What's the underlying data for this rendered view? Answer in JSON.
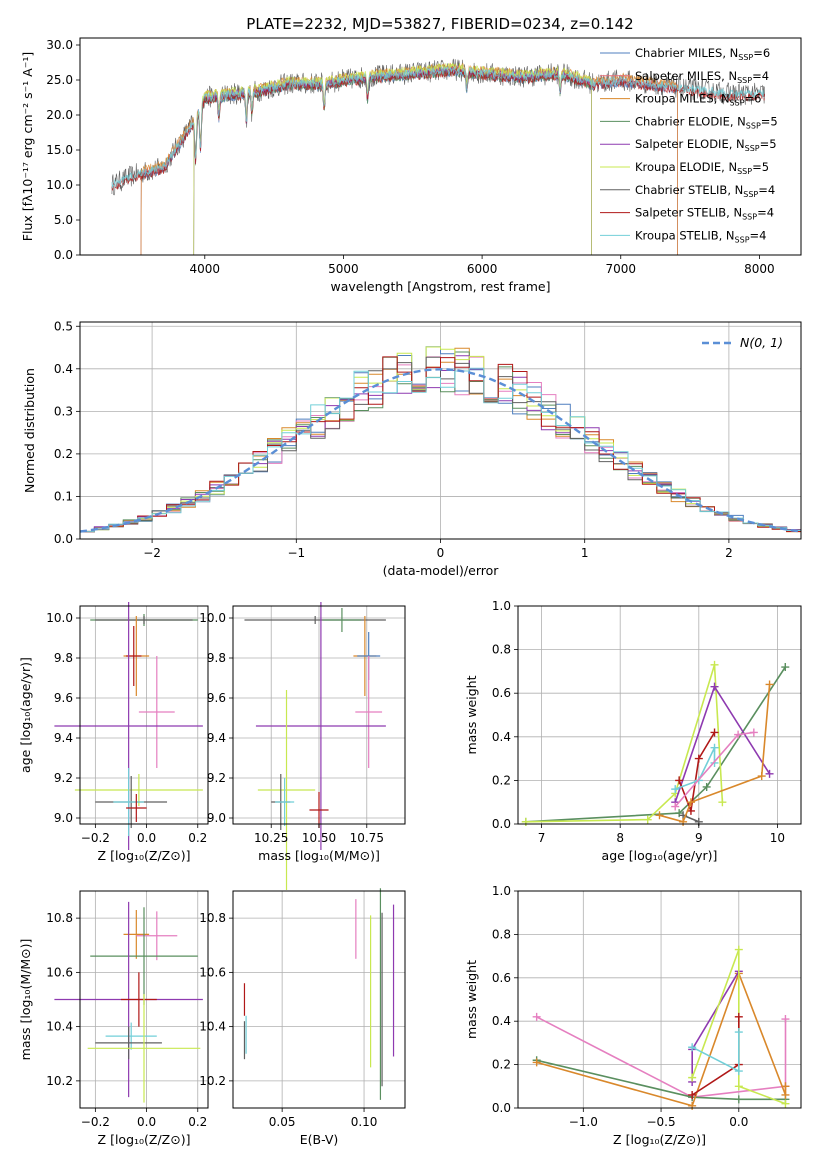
{
  "figure_title": "PLATE=2232, MJD=53827, FIBERID=0234, z=0.142",
  "colors": {
    "chabrier_miles": "#4f7fbf",
    "salpeter_miles": "#e8707a",
    "kroupa_miles": "#d9882b",
    "chabrier_elodie": "#5a8f5f",
    "salpeter_elodie": "#8e3ab0",
    "kroupa_elodie": "#c8e850",
    "chabrier_stelib": "#606060",
    "salpeter_stelib": "#b01818",
    "kroupa_stelib": "#72cfd8",
    "pink": "#e57fc0",
    "normal_curve": "#5b8fd6",
    "grid": "#b0b0b0"
  },
  "chart_data": [
    {
      "type": "line",
      "xlabel": "wavelength [Angstrom, rest frame]",
      "ylabel": "Flux [fλ10⁻¹⁷ erg cm⁻² s⁻¹ A⁻¹]",
      "xlim": [
        3100,
        8300
      ],
      "ylim": [
        0,
        31
      ],
      "xticks": [
        4000,
        5000,
        6000,
        7000,
        8000
      ],
      "yticks": [
        0,
        5,
        10,
        15,
        20,
        25,
        30
      ],
      "grid": false,
      "legend_position": "top-right",
      "legend": [
        {
          "label": "Chabrier MILES, N",
          "sub": "SSP",
          "tail": "=6",
          "color_key": "chabrier_miles"
        },
        {
          "label": "Salpeter MILES, N",
          "sub": "SSP",
          "tail": "=4",
          "color_key": "salpeter_miles"
        },
        {
          "label": "Kroupa MILES, N",
          "sub": "SSP",
          "tail": "=6",
          "color_key": "kroupa_miles"
        },
        {
          "label": "Chabrier ELODIE, N",
          "sub": "SSP",
          "tail": "=5",
          "color_key": "chabrier_elodie"
        },
        {
          "label": "Salpeter ELODIE, N",
          "sub": "SSP",
          "tail": "=5",
          "color_key": "salpeter_elodie"
        },
        {
          "label": "Kroupa ELODIE, N",
          "sub": "SSP",
          "tail": "=5",
          "color_key": "kroupa_elodie"
        },
        {
          "label": "Chabrier STELIB, N",
          "sub": "SSP",
          "tail": "=4",
          "color_key": "chabrier_stelib"
        },
        {
          "label": "Salpeter STELIB, N",
          "sub": "SSP",
          "tail": "=4",
          "color_key": "salpeter_stelib"
        },
        {
          "label": "Kroupa STELIB, N",
          "sub": "SSP",
          "tail": "=4",
          "color_key": "kroupa_stelib"
        }
      ],
      "spectrum": {
        "x_range": [
          3330,
          8040
        ],
        "continuum": [
          [
            3330,
            10
          ],
          [
            3500,
            11.5
          ],
          [
            3700,
            12.5
          ],
          [
            3850,
            17
          ],
          [
            3920,
            19
          ],
          [
            4000,
            22.5
          ],
          [
            4200,
            23
          ],
          [
            4400,
            23.5
          ],
          [
            4600,
            24.5
          ],
          [
            4860,
            24.5
          ],
          [
            5000,
            25
          ],
          [
            5200,
            25.5
          ],
          [
            5500,
            26
          ],
          [
            5800,
            26.5
          ],
          [
            6000,
            26
          ],
          [
            6300,
            25.5
          ],
          [
            6560,
            26
          ],
          [
            6800,
            24.5
          ],
          [
            7000,
            25
          ],
          [
            7400,
            24
          ],
          [
            7800,
            23
          ],
          [
            8040,
            23
          ]
        ],
        "absorption_lines": [
          [
            3934,
            6
          ],
          [
            3969,
            6
          ],
          [
            4102,
            3
          ],
          [
            4300,
            4
          ],
          [
            4340,
            3
          ],
          [
            4861,
            3.5
          ],
          [
            5175,
            3
          ],
          [
            5890,
            2.5
          ],
          [
            6563,
            2.5
          ]
        ],
        "model_ranges": [
          {
            "key": "chabrier_miles",
            "from": 3540,
            "to": 7410
          },
          {
            "key": "salpeter_miles",
            "from": 3540,
            "to": 7410
          },
          {
            "key": "kroupa_miles",
            "from": 3540,
            "to": 7410
          },
          {
            "key": "chabrier_elodie",
            "from": 3920,
            "to": 6790
          },
          {
            "key": "salpeter_elodie",
            "from": 3920,
            "to": 6790
          },
          {
            "key": "kroupa_elodie",
            "from": 3920,
            "to": 6790
          },
          {
            "key": "salpeter_stelib",
            "from": 3330,
            "to": 8040
          },
          {
            "key": "kroupa_stelib",
            "from": 3330,
            "to": 8040
          }
        ]
      }
    },
    {
      "type": "histogram",
      "xlabel": "(data-model)/error",
      "ylabel": "Normed distribution",
      "xlim": [
        -2.5,
        2.5
      ],
      "ylim": [
        0,
        0.51
      ],
      "xticks": [
        -2,
        -1,
        0,
        1,
        2
      ],
      "xtick_labels": [
        "−2",
        "−1",
        "0",
        "1",
        "2"
      ],
      "yticks": [
        0.0,
        0.1,
        0.2,
        0.3,
        0.4,
        0.5
      ],
      "grid": true,
      "legend_position": "top-right",
      "normal_label": "N(0, 1)",
      "bin_width": 0.1,
      "series_keys": [
        "chabrier_miles",
        "pink",
        "kroupa_miles",
        "chabrier_elodie",
        "salpeter_elodie",
        "kroupa_elodie",
        "chabrier_stelib",
        "salpeter_stelib",
        "kroupa_stelib"
      ]
    },
    {
      "type": "scatter-errorbar",
      "xlabel": "Z [log₁₀(Z/Z⊙)]",
      "ylabel": "age  [log₁₀(age/yr)]",
      "xlim": [
        -0.26,
        0.24
      ],
      "ylim": [
        8.97,
        10.06
      ],
      "xticks": [
        -0.2,
        0.0,
        0.2
      ],
      "xtick_labels": [
        "−0.2",
        "0.0",
        "0.2"
      ],
      "yticks": [
        9.0,
        9.2,
        9.4,
        9.6,
        9.8,
        10.0
      ],
      "grid": true,
      "points": [
        {
          "x": -0.01,
          "y": 9.99,
          "xe": 0.21,
          "ye": 0.03,
          "key": "chabrier_elodie"
        },
        {
          "x": -0.01,
          "y": 9.99,
          "xe": 0.19,
          "ye": 0.02,
          "key": "chabrier_stelib"
        },
        {
          "x": -0.04,
          "y": 9.81,
          "xe": 0.05,
          "ye": 0.2,
          "key": "kroupa_miles"
        },
        {
          "x": -0.05,
          "y": 9.81,
          "xe": 0.03,
          "ye": 0.15,
          "key": "salpeter_stelib"
        },
        {
          "x": 0.04,
          "y": 9.53,
          "xe": 0.07,
          "ye": 0.28,
          "key": "pink"
        },
        {
          "x": -0.07,
          "y": 9.46,
          "xe": 0.29,
          "ye": 0.62,
          "key": "salpeter_elodie"
        },
        {
          "x": -0.03,
          "y": 9.14,
          "xe": 0.25,
          "ye": 0.08,
          "key": "kroupa_elodie"
        },
        {
          "x": -0.06,
          "y": 9.08,
          "xe": 0.14,
          "ye": 0.13,
          "key": "chabrier_stelib"
        },
        {
          "x": -0.07,
          "y": 9.08,
          "xe": 0.06,
          "ye": 0.17,
          "key": "kroupa_stelib"
        },
        {
          "x": -0.04,
          "y": 9.05,
          "xe": 0.04,
          "ye": 0.07,
          "key": "salpeter_stelib"
        }
      ]
    },
    {
      "type": "scatter-errorbar",
      "xlabel": "mass [log₁₀(M/M⊙)]",
      "ylabel": "",
      "xlim": [
        10.05,
        10.95
      ],
      "ylim": [
        8.97,
        10.06
      ],
      "xticks": [
        10.25,
        10.5,
        10.75
      ],
      "xtick_labels": [
        "10.25",
        "10.50",
        "10.75"
      ],
      "yticks": [
        9.0,
        9.2,
        9.4,
        9.6,
        9.8,
        10.0
      ],
      "grid": true,
      "points": [
        {
          "x": 10.48,
          "y": 9.99,
          "xe": 0.37,
          "ye": 0.02,
          "key": "chabrier_stelib"
        },
        {
          "x": 10.62,
          "y": 9.99,
          "xe": 0.1,
          "ye": 0.06,
          "key": "chabrier_elodie"
        },
        {
          "x": 10.74,
          "y": 9.81,
          "xe": 0.06,
          "ye": 0.2,
          "key": "kroupa_miles"
        },
        {
          "x": 10.76,
          "y": 9.81,
          "xe": 0.06,
          "ye": 0.12,
          "key": "chabrier_miles"
        },
        {
          "x": 10.76,
          "y": 9.53,
          "xe": 0.07,
          "ye": 0.28,
          "key": "pink"
        },
        {
          "x": 10.51,
          "y": 9.46,
          "xe": 0.34,
          "ye": 0.62,
          "key": "salpeter_elodie"
        },
        {
          "x": 10.33,
          "y": 9.14,
          "xe": 0.15,
          "ye": 0.5,
          "key": "kroupa_elodie"
        },
        {
          "x": 10.3,
          "y": 9.08,
          "xe": 0.05,
          "ye": 0.14,
          "key": "chabrier_stelib"
        },
        {
          "x": 10.32,
          "y": 9.08,
          "xe": 0.05,
          "ye": 0.12,
          "key": "kroupa_stelib"
        },
        {
          "x": 10.5,
          "y": 9.04,
          "xe": 0.05,
          "ye": 0.09,
          "key": "salpeter_stelib"
        }
      ]
    },
    {
      "type": "line",
      "xlabel": "age  [log₁₀(age/yr)]",
      "ylabel": "mass weight",
      "xlim": [
        6.7,
        10.3
      ],
      "ylim": [
        0,
        1
      ],
      "xticks": [
        7,
        8,
        9,
        10
      ],
      "yticks": [
        0.0,
        0.2,
        0.4,
        0.6,
        0.8,
        1.0
      ],
      "grid": true,
      "series": [
        {
          "key": "chabrier_elodie",
          "x": [
            6.8,
            8.75,
            9.1,
            10.1
          ],
          "y": [
            0.01,
            0.05,
            0.17,
            0.72
          ]
        },
        {
          "key": "kroupa_elodie",
          "x": [
            6.8,
            8.35,
            8.7,
            9.2,
            9.3
          ],
          "y": [
            0.01,
            0.02,
            0.14,
            0.73,
            0.1
          ]
        },
        {
          "key": "salpeter_elodie",
          "x": [
            8.7,
            9.2,
            9.9
          ],
          "y": [
            0.1,
            0.63,
            0.23
          ]
        },
        {
          "key": "salpeter_stelib",
          "x": [
            8.75,
            8.9,
            9.0,
            9.2
          ],
          "y": [
            0.2,
            0.06,
            0.3,
            0.42
          ]
        },
        {
          "key": "kroupa_stelib",
          "x": [
            8.7,
            9.0,
            9.2,
            9.2
          ],
          "y": [
            0.16,
            0.2,
            0.35,
            0.28
          ]
        },
        {
          "key": "pink",
          "x": [
            8.7,
            9.5,
            9.7
          ],
          "y": [
            0.08,
            0.41,
            0.42
          ]
        },
        {
          "key": "chabrier_stelib",
          "x": [
            8.8,
            9.0
          ],
          "y": [
            0.04,
            0.01
          ]
        },
        {
          "key": "kroupa_miles",
          "x": [
            8.5,
            8.8,
            8.9,
            9.8,
            9.9
          ],
          "y": [
            0.04,
            0.01,
            0.1,
            0.22,
            0.64
          ]
        }
      ]
    },
    {
      "type": "scatter-errorbar",
      "xlabel": "Z [log₁₀(Z/Z⊙)]",
      "ylabel": "mass [log₁₀(M/M⊙)]",
      "xlim": [
        -0.26,
        0.24
      ],
      "ylim": [
        10.1,
        10.9
      ],
      "xticks": [
        -0.2,
        0.0,
        0.2
      ],
      "xtick_labels": [
        "−0.2",
        "0.0",
        "0.2"
      ],
      "yticks": [
        10.2,
        10.4,
        10.6,
        10.8
      ],
      "grid": true,
      "points": [
        {
          "x": -0.04,
          "y": 10.74,
          "xe": 0.05,
          "ye": 0.09,
          "key": "kroupa_miles"
        },
        {
          "x": 0.04,
          "y": 10.735,
          "xe": 0.08,
          "ye": 0.09,
          "key": "pink"
        },
        {
          "x": -0.01,
          "y": 10.66,
          "xe": 0.21,
          "ye": 0.18,
          "key": "chabrier_elodie"
        },
        {
          "x": -0.07,
          "y": 10.5,
          "xe": 0.29,
          "ye": 0.36,
          "key": "salpeter_elodie"
        },
        {
          "x": -0.03,
          "y": 10.5,
          "xe": 0.07,
          "ye": 0.1,
          "key": "salpeter_stelib"
        },
        {
          "x": -0.06,
          "y": 10.365,
          "xe": 0.1,
          "ye": 0.05,
          "key": "kroupa_stelib"
        },
        {
          "x": -0.07,
          "y": 10.34,
          "xe": 0.13,
          "ye": 0.06,
          "key": "chabrier_stelib"
        },
        {
          "x": -0.01,
          "y": 10.32,
          "xe": 0.22,
          "ye": 0.2,
          "key": "kroupa_elodie"
        }
      ]
    },
    {
      "type": "errorbar",
      "xlabel": "E(B-V)",
      "ylabel": "",
      "xlim": [
        0.02,
        0.125
      ],
      "ylim": [
        10.1,
        10.9
      ],
      "xticks": [
        0.05,
        0.1
      ],
      "xtick_labels": [
        "0.05",
        "0.10"
      ],
      "yticks": [
        10.2,
        10.4,
        10.6,
        10.8
      ],
      "grid": true,
      "points": [
        {
          "x": 0.027,
          "y": 10.5,
          "ye": 0.06,
          "key": "salpeter_stelib"
        },
        {
          "x": 0.027,
          "y": 10.35,
          "ye": 0.07,
          "key": "chabrier_stelib"
        },
        {
          "x": 0.028,
          "y": 10.37,
          "ye": 0.07,
          "key": "kroupa_stelib"
        },
        {
          "x": 0.095,
          "y": 10.76,
          "ye": 0.11,
          "key": "pink"
        },
        {
          "x": 0.104,
          "y": 10.53,
          "ye": 0.28,
          "key": "kroupa_elodie"
        },
        {
          "x": 0.11,
          "y": 10.52,
          "ye": 0.39,
          "key": "chabrier_elodie"
        },
        {
          "x": 0.111,
          "y": 10.5,
          "ye": 0.32,
          "key": "chabrier_stelib"
        },
        {
          "x": 0.118,
          "y": 10.57,
          "ye": 0.28,
          "key": "salpeter_elodie"
        }
      ]
    },
    {
      "type": "line",
      "xlabel": "Z [log₁₀(Z/Z⊙)]",
      "ylabel": "mass weight",
      "xlim": [
        -1.42,
        0.4
      ],
      "ylim": [
        0,
        1
      ],
      "xticks": [
        -1.0,
        -0.5,
        0.0
      ],
      "xtick_labels": [
        "−1.0",
        "−0.5",
        "0.0"
      ],
      "yticks": [
        0.0,
        0.2,
        0.4,
        0.6,
        0.8,
        1.0
      ],
      "grid": true,
      "series": [
        {
          "key": "pink",
          "x": [
            -1.3,
            -0.3,
            0.3,
            0.3
          ],
          "y": [
            0.42,
            0.05,
            0.1,
            0.41
          ]
        },
        {
          "key": "chabrier_elodie",
          "x": [
            -1.3,
            -0.3,
            0.0,
            0.3
          ],
          "y": [
            0.22,
            0.05,
            0.04,
            0.04
          ]
        },
        {
          "key": "kroupa_miles",
          "x": [
            -1.3,
            -0.3,
            0.0,
            0.3,
            0.3
          ],
          "y": [
            0.21,
            0.01,
            0.62,
            0.06,
            0.1
          ]
        },
        {
          "key": "salpeter_elodie",
          "x": [
            -0.3,
            -0.3,
            0.0
          ],
          "y": [
            0.12,
            0.27,
            0.63
          ]
        },
        {
          "key": "kroupa_elodie",
          "x": [
            -0.3,
            0.0,
            0.0,
            0.3
          ],
          "y": [
            0.14,
            0.73,
            0.1,
            0.02
          ]
        },
        {
          "key": "salpeter_stelib",
          "x": [
            -0.3,
            0.0,
            0.0
          ],
          "y": [
            0.06,
            0.2,
            0.42
          ]
        },
        {
          "key": "kroupa_stelib",
          "x": [
            -0.3,
            0.0,
            0.0
          ],
          "y": [
            0.28,
            0.17,
            0.35
          ]
        }
      ]
    }
  ]
}
